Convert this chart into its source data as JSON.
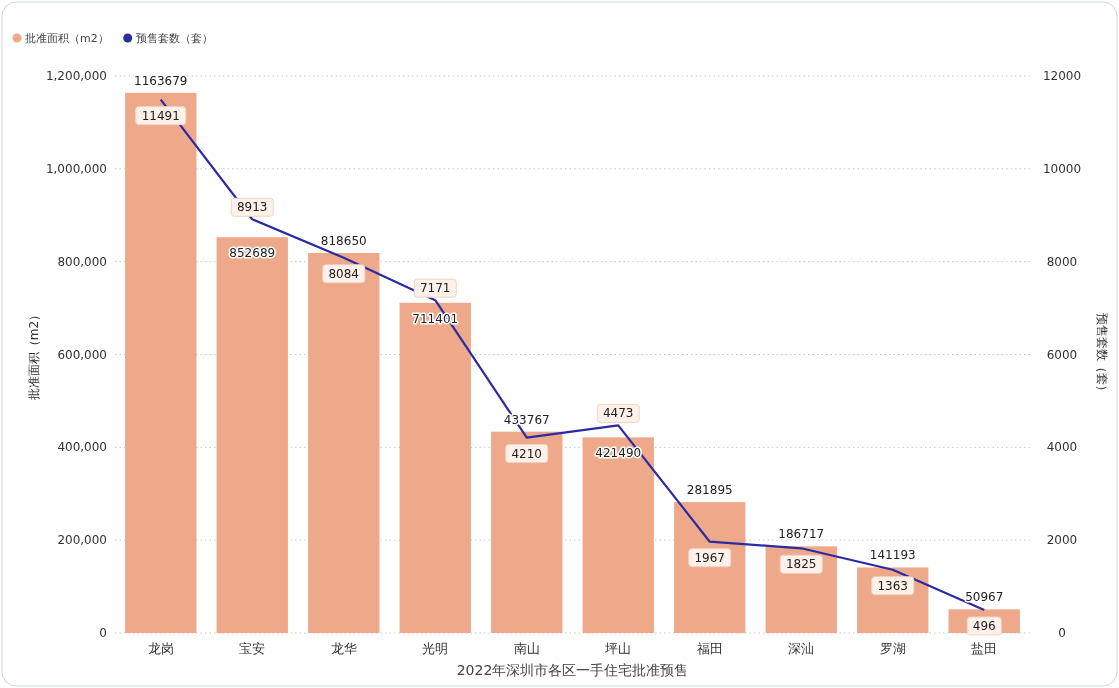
{
  "chart_data": {
    "type": "bar",
    "xlabel": "2022年深圳市各区一手住宅批准预售",
    "ylabel": "批准面积（m2）",
    "y2label": "预售套数（套）",
    "categories": [
      "龙岗",
      "宝安",
      "龙华",
      "光明",
      "南山",
      "坪山",
      "福田",
      "深汕",
      "罗湖",
      "盐田"
    ],
    "series": [
      {
        "name": "批准面积（m2）",
        "color": "#eda98a",
        "values": [
          1163679,
          852689,
          818650,
          711401,
          433767,
          421490,
          281895,
          186717,
          141193,
          50967
        ]
      },
      {
        "name": "预售套数（套）",
        "type": "line",
        "axis": "y2",
        "color": "#2b2ba3",
        "values": [
          11491,
          8913,
          8084,
          7171,
          4210,
          4473,
          1967,
          1825,
          1363,
          496
        ]
      }
    ],
    "ylim": [
      0,
      1200000
    ],
    "yticks": [
      0,
      {
        "value": 200000,
        "label": "200,000"
      },
      {
        "value": 400000,
        "label": "400,000"
      },
      {
        "value": 600000,
        "label": "600,000"
      },
      {
        "value": 800000,
        "label": "800,000"
      },
      {
        "value": 1000000,
        "label": "1,000,000"
      },
      {
        "value": 1200000,
        "label": "1,200,000"
      }
    ],
    "y2lim": [
      0,
      12000
    ],
    "y2ticks": [
      0,
      2000,
      4000,
      6000,
      8000,
      10000,
      12000
    ],
    "grid": "y",
    "legend": "top left",
    "data_labels": true
  }
}
